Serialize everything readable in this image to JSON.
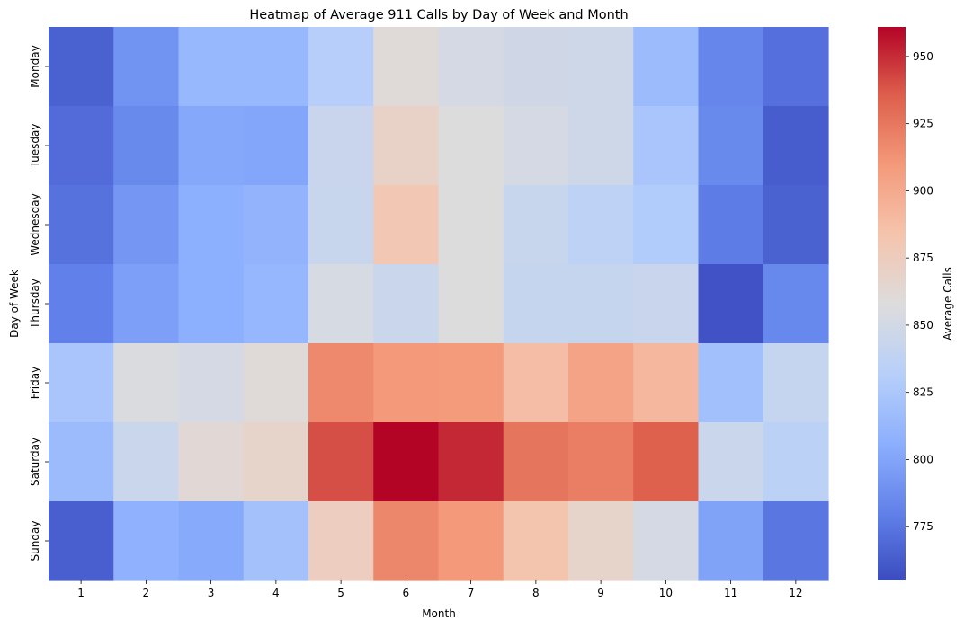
{
  "chart_data": {
    "type": "heatmap",
    "title": "Heatmap of Average 911 Calls by Day of Week and Month",
    "xlabel": "Month",
    "ylabel": "Day of Week",
    "colorbar_label": "Average Calls",
    "colormap": "coolwarm",
    "x_categories": [
      "1",
      "2",
      "3",
      "4",
      "5",
      "6",
      "7",
      "8",
      "9",
      "10",
      "11",
      "12"
    ],
    "y_categories": [
      "Monday",
      "Tuesday",
      "Wednesday",
      "Thursday",
      "Friday",
      "Saturday",
      "Sunday"
    ],
    "vmin": 755,
    "vmax": 961,
    "colorbar_ticks": [
      775,
      800,
      825,
      850,
      875,
      900,
      925,
      950
    ],
    "values": [
      [
        765,
        790,
        813,
        813,
        831,
        860,
        852,
        848,
        847,
        815,
        783,
        772
      ],
      [
        770,
        785,
        802,
        801,
        844,
        870,
        857,
        852,
        847,
        823,
        785,
        763
      ],
      [
        773,
        792,
        806,
        810,
        843,
        880,
        858,
        843,
        836,
        828,
        778,
        765
      ],
      [
        780,
        797,
        806,
        812,
        853,
        845,
        857,
        842,
        842,
        844,
        758,
        784
      ],
      [
        823,
        855,
        852,
        860,
        917,
        910,
        909,
        888,
        904,
        891,
        819,
        841
      ],
      [
        815,
        845,
        862,
        868,
        940,
        961,
        951,
        926,
        922,
        935,
        845,
        835
      ],
      [
        764,
        808,
        803,
        820,
        874,
        918,
        910,
        883,
        868,
        852,
        799,
        775
      ]
    ]
  }
}
